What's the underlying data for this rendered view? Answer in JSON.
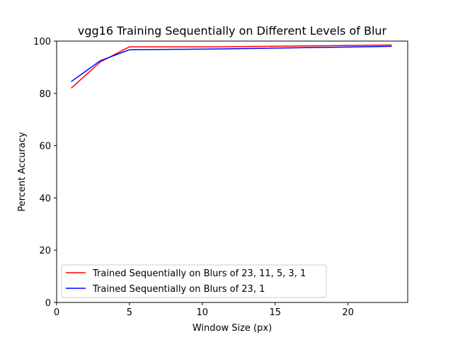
{
  "chart_data": {
    "type": "line",
    "title": "vgg16 Training Sequentially on Different Levels of Blur",
    "xlabel": "Window Size (px)",
    "ylabel": "Percent Accuracy",
    "xlim": [
      0,
      24.1
    ],
    "ylim": [
      0,
      100
    ],
    "xticks": [
      0,
      5,
      10,
      15,
      20
    ],
    "yticks": [
      0,
      20,
      40,
      60,
      80,
      100
    ],
    "grid": false,
    "legend_position": "lower-left",
    "series": [
      {
        "name": "Trained Sequentially on Blurs of 23, 11, 5, 3, 1",
        "color": "#ff0000",
        "x": [
          1,
          3,
          5,
          11,
          23
        ],
        "y": [
          82,
          92,
          97.8,
          97.8,
          98.5
        ]
      },
      {
        "name": "Trained Sequentially on Blurs of 23, 1",
        "color": "#0000ff",
        "x": [
          1,
          3,
          5,
          11,
          23
        ],
        "y": [
          84.5,
          92.5,
          96.7,
          97,
          98
        ]
      }
    ]
  }
}
